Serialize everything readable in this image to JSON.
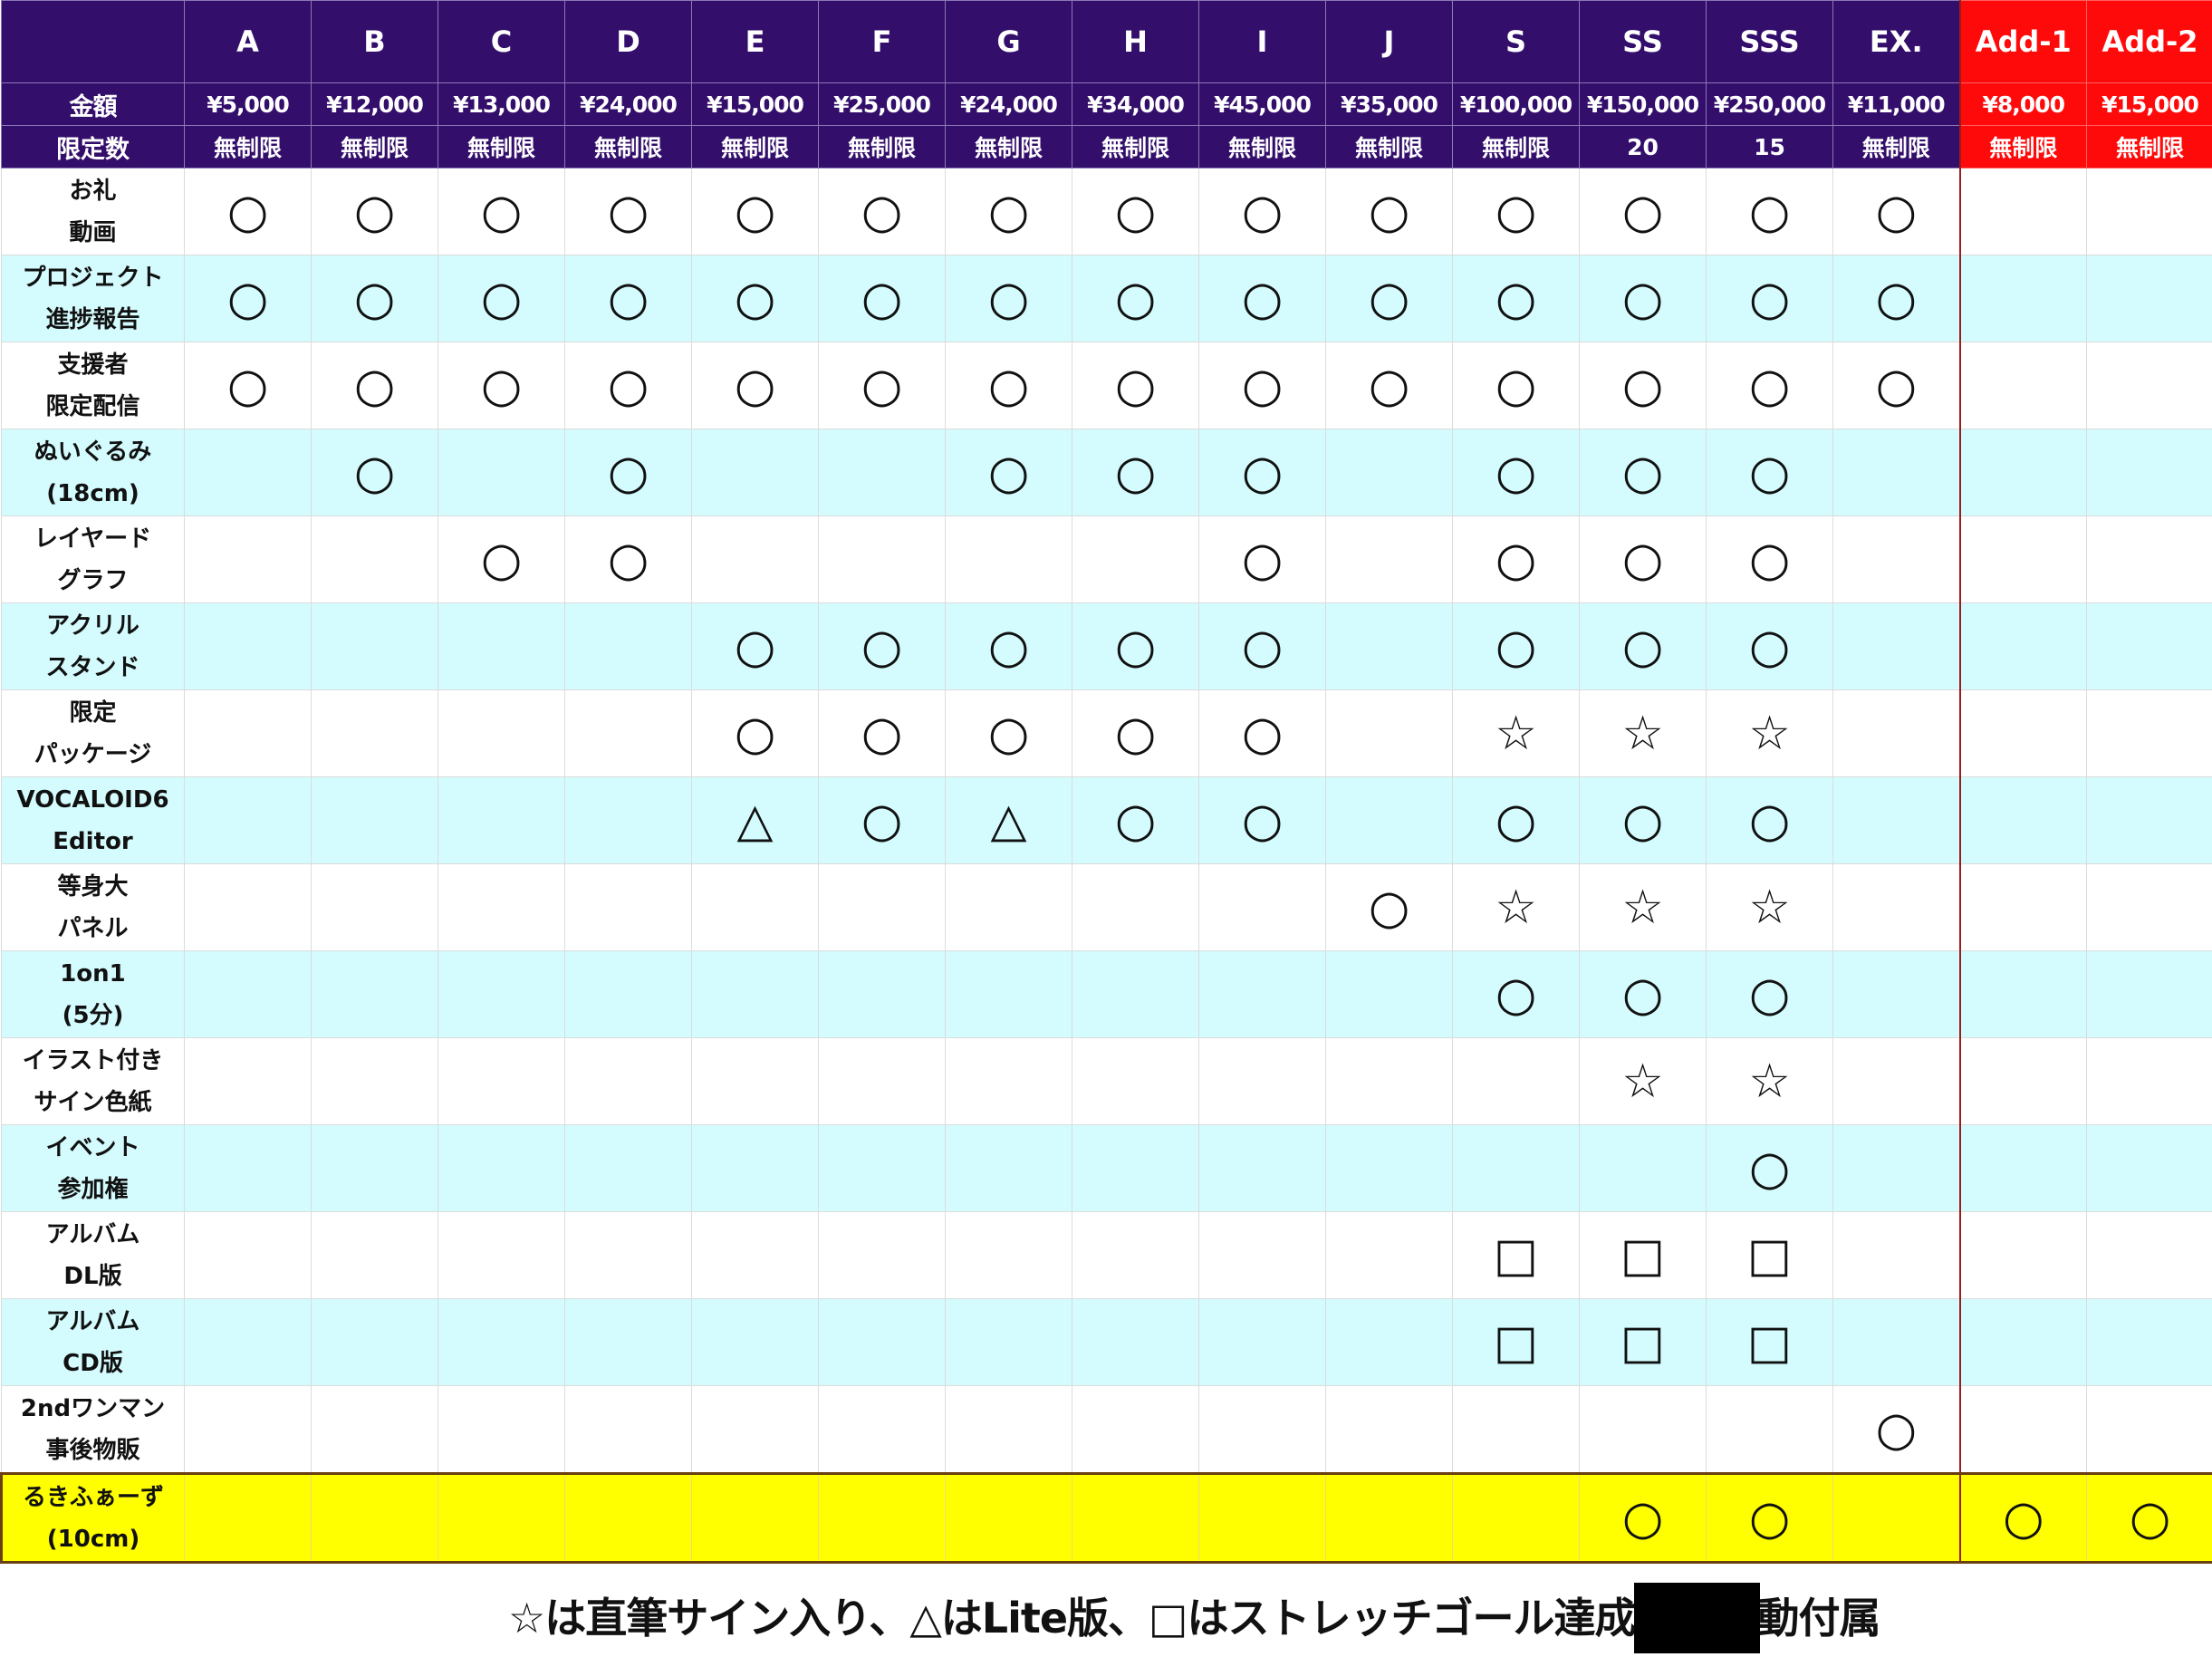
{
  "columns": [
    "A",
    "B",
    "C",
    "D",
    "E",
    "F",
    "G",
    "H",
    "I",
    "J",
    "S",
    "SS",
    "SSS",
    "EX.",
    "Add-1",
    "Add-2"
  ],
  "price_label": "金額",
  "prices": [
    "¥5,000",
    "¥12,000",
    "¥13,000",
    "¥24,000",
    "¥15,000",
    "¥25,000",
    "¥24,000",
    "¥34,000",
    "¥45,000",
    "¥35,000",
    "¥100,000",
    "¥150,000",
    "¥250,000",
    "¥11,000",
    "¥8,000",
    "¥15,000"
  ],
  "limit_label": "限定数",
  "limits": [
    "無制限",
    "無制限",
    "無制限",
    "無制限",
    "無制限",
    "無制限",
    "無制限",
    "無制限",
    "無制限",
    "無制限",
    "無制限",
    "20",
    "15",
    "無制限",
    "無制限",
    "無制限"
  ],
  "rows": [
    {
      "label": [
        "お礼",
        "動画"
      ],
      "marks": [
        "○",
        "○",
        "○",
        "○",
        "○",
        "○",
        "○",
        "○",
        "○",
        "○",
        "○",
        "○",
        "○",
        "○",
        "",
        ""
      ]
    },
    {
      "label": [
        "プロジェクト",
        "進捗報告"
      ],
      "marks": [
        "○",
        "○",
        "○",
        "○",
        "○",
        "○",
        "○",
        "○",
        "○",
        "○",
        "○",
        "○",
        "○",
        "○",
        "",
        ""
      ]
    },
    {
      "label": [
        "支援者",
        "限定配信"
      ],
      "marks": [
        "○",
        "○",
        "○",
        "○",
        "○",
        "○",
        "○",
        "○",
        "○",
        "○",
        "○",
        "○",
        "○",
        "○",
        "",
        ""
      ]
    },
    {
      "label": [
        "ぬいぐるみ",
        "(18cm)"
      ],
      "marks": [
        "",
        "○",
        "",
        "○",
        "",
        "",
        "○",
        "○",
        "○",
        "",
        "○",
        "○",
        "○",
        "",
        "",
        ""
      ]
    },
    {
      "label": [
        "レイヤード",
        "グラフ"
      ],
      "marks": [
        "",
        "",
        "○",
        "○",
        "",
        "",
        "",
        "",
        "○",
        "",
        "○",
        "○",
        "○",
        "",
        "",
        ""
      ]
    },
    {
      "label": [
        "アクリル",
        "スタンド"
      ],
      "marks": [
        "",
        "",
        "",
        "",
        "○",
        "○",
        "○",
        "○",
        "○",
        "",
        "○",
        "○",
        "○",
        "",
        "",
        ""
      ]
    },
    {
      "label": [
        "限定",
        "パッケージ"
      ],
      "marks": [
        "",
        "",
        "",
        "",
        "○",
        "○",
        "○",
        "○",
        "○",
        "",
        "☆",
        "☆",
        "☆",
        "",
        "",
        ""
      ]
    },
    {
      "label": [
        "VOCALOID6",
        "Editor"
      ],
      "marks": [
        "",
        "",
        "",
        "",
        "△",
        "○",
        "△",
        "○",
        "○",
        "",
        "○",
        "○",
        "○",
        "",
        "",
        ""
      ]
    },
    {
      "label": [
        "等身大",
        "パネル"
      ],
      "marks": [
        "",
        "",
        "",
        "",
        "",
        "",
        "",
        "",
        "",
        "○",
        "☆",
        "☆",
        "☆",
        "",
        "",
        ""
      ]
    },
    {
      "label": [
        "1on1",
        "(5分)"
      ],
      "marks": [
        "",
        "",
        "",
        "",
        "",
        "",
        "",
        "",
        "",
        "",
        "○",
        "○",
        "○",
        "",
        "",
        ""
      ]
    },
    {
      "label": [
        "イラスト付き",
        "サイン色紙"
      ],
      "marks": [
        "",
        "",
        "",
        "",
        "",
        "",
        "",
        "",
        "",
        "",
        "",
        "☆",
        "☆",
        "",
        "",
        ""
      ]
    },
    {
      "label": [
        "イベント",
        "参加権"
      ],
      "marks": [
        "",
        "",
        "",
        "",
        "",
        "",
        "",
        "",
        "",
        "",
        "",
        "",
        "○",
        "",
        "",
        ""
      ]
    },
    {
      "label": [
        "アルバム",
        "DL版"
      ],
      "marks": [
        "",
        "",
        "",
        "",
        "",
        "",
        "",
        "",
        "",
        "",
        "□",
        "□",
        "□",
        "",
        "",
        ""
      ]
    },
    {
      "label": [
        "アルバム",
        "CD版"
      ],
      "marks": [
        "",
        "",
        "",
        "",
        "",
        "",
        "",
        "",
        "",
        "",
        "□",
        "□",
        "□",
        "",
        "",
        ""
      ]
    },
    {
      "label": [
        "2ndワンマン",
        "事後物販"
      ],
      "marks": [
        "",
        "",
        "",
        "",
        "",
        "",
        "",
        "",
        "",
        "",
        "",
        "",
        "",
        "○",
        "",
        ""
      ]
    },
    {
      "label": [
        "るきふぁーず",
        "(10cm)"
      ],
      "marks": [
        "",
        "",
        "",
        "",
        "",
        "",
        "",
        "",
        "",
        "",
        "",
        "○",
        "○",
        "",
        "○",
        "○"
      ]
    }
  ],
  "footer": {
    "before": "☆は直筆サイン入り、△はLite版、□はストレッチゴール達成",
    "after": "動付属"
  },
  "colors": {
    "header": "#330e6b",
    "addon_header": "#ff0a0a",
    "alt_row": "#d4fbfd",
    "highlight_row": "#ffff00"
  }
}
